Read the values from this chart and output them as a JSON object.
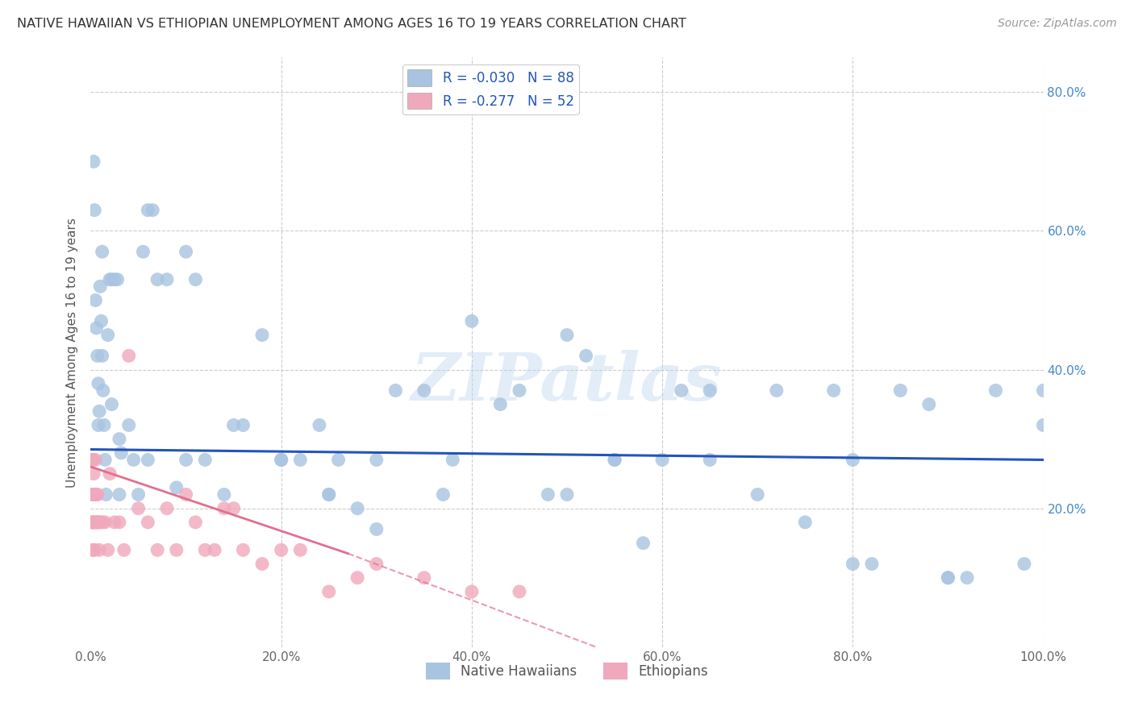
{
  "title": "NATIVE HAWAIIAN VS ETHIOPIAN UNEMPLOYMENT AMONG AGES 16 TO 19 YEARS CORRELATION CHART",
  "source": "Source: ZipAtlas.com",
  "ylabel": "Unemployment Among Ages 16 to 19 years",
  "xlim": [
    0,
    1.0
  ],
  "ylim": [
    0,
    0.85
  ],
  "xtick_vals": [
    0.0,
    0.2,
    0.4,
    0.6,
    0.8,
    1.0
  ],
  "ytick_vals": [
    0.0,
    0.2,
    0.4,
    0.6,
    0.8
  ],
  "xtick_labels": [
    "0.0%",
    "20.0%",
    "40.0%",
    "60.0%",
    "80.0%",
    "100.0%"
  ],
  "ytick_labels_right": [
    "",
    "20.0%",
    "40.0%",
    "60.0%",
    "80.0%"
  ],
  "color_hawaiian": "#a8c4e0",
  "color_ethiopian": "#f0a8bc",
  "color_line_hawaiian": "#2255bb",
  "color_line_ethiopian": "#e07090",
  "background_color": "#ffffff",
  "grid_color": "#cccccc",
  "hawaiian_x": [
    0.003,
    0.004,
    0.005,
    0.006,
    0.007,
    0.008,
    0.009,
    0.01,
    0.011,
    0.012,
    0.013,
    0.014,
    0.015,
    0.016,
    0.02,
    0.022,
    0.025,
    0.028,
    0.03,
    0.032,
    0.04,
    0.045,
    0.05,
    0.055,
    0.06,
    0.065,
    0.07,
    0.08,
    0.09,
    0.1,
    0.11,
    0.12,
    0.14,
    0.16,
    0.18,
    0.2,
    0.22,
    0.24,
    0.25,
    0.26,
    0.28,
    0.3,
    0.32,
    0.35,
    0.37,
    0.38,
    0.4,
    0.43,
    0.45,
    0.48,
    0.5,
    0.52,
    0.55,
    0.58,
    0.6,
    0.62,
    0.65,
    0.7,
    0.72,
    0.75,
    0.78,
    0.8,
    0.82,
    0.85,
    0.88,
    0.9,
    0.92,
    0.95,
    0.98,
    1.0,
    1.0,
    0.005,
    0.008,
    0.012,
    0.018,
    0.022,
    0.03,
    0.06,
    0.1,
    0.15,
    0.2,
    0.25,
    0.3,
    0.5,
    0.55,
    0.65,
    0.8,
    0.9
  ],
  "hawaiian_y": [
    0.7,
    0.63,
    0.5,
    0.46,
    0.42,
    0.38,
    0.34,
    0.52,
    0.47,
    0.42,
    0.37,
    0.32,
    0.27,
    0.22,
    0.53,
    0.53,
    0.53,
    0.53,
    0.3,
    0.28,
    0.32,
    0.27,
    0.22,
    0.57,
    0.63,
    0.63,
    0.53,
    0.53,
    0.23,
    0.57,
    0.53,
    0.27,
    0.22,
    0.32,
    0.45,
    0.27,
    0.27,
    0.32,
    0.22,
    0.27,
    0.2,
    0.27,
    0.37,
    0.37,
    0.22,
    0.27,
    0.47,
    0.35,
    0.37,
    0.22,
    0.45,
    0.42,
    0.27,
    0.15,
    0.27,
    0.37,
    0.27,
    0.22,
    0.37,
    0.18,
    0.37,
    0.27,
    0.12,
    0.37,
    0.35,
    0.1,
    0.1,
    0.37,
    0.12,
    0.37,
    0.32,
    0.22,
    0.32,
    0.57,
    0.45,
    0.35,
    0.22,
    0.27,
    0.27,
    0.32,
    0.27,
    0.22,
    0.17,
    0.22,
    0.27,
    0.37,
    0.12,
    0.1
  ],
  "ethiopian_x": [
    0.001,
    0.001,
    0.001,
    0.002,
    0.002,
    0.002,
    0.002,
    0.003,
    0.003,
    0.003,
    0.004,
    0.004,
    0.004,
    0.005,
    0.005,
    0.005,
    0.006,
    0.006,
    0.007,
    0.007,
    0.008,
    0.009,
    0.01,
    0.012,
    0.015,
    0.018,
    0.02,
    0.025,
    0.03,
    0.035,
    0.04,
    0.05,
    0.06,
    0.07,
    0.08,
    0.09,
    0.1,
    0.11,
    0.12,
    0.14,
    0.16,
    0.18,
    0.2,
    0.25,
    0.3,
    0.35,
    0.4,
    0.45,
    0.13,
    0.15,
    0.22,
    0.28
  ],
  "ethiopian_y": [
    0.27,
    0.22,
    0.18,
    0.27,
    0.22,
    0.18,
    0.14,
    0.25,
    0.22,
    0.18,
    0.22,
    0.18,
    0.14,
    0.27,
    0.22,
    0.18,
    0.22,
    0.18,
    0.22,
    0.18,
    0.18,
    0.14,
    0.18,
    0.18,
    0.18,
    0.14,
    0.25,
    0.18,
    0.18,
    0.14,
    0.42,
    0.2,
    0.18,
    0.14,
    0.2,
    0.14,
    0.22,
    0.18,
    0.14,
    0.2,
    0.14,
    0.12,
    0.14,
    0.08,
    0.12,
    0.1,
    0.08,
    0.08,
    0.14,
    0.2,
    0.14,
    0.1
  ],
  "legend_text1": "R = -0.030   N = 88",
  "legend_text2": "R = -0.277   N = 52"
}
